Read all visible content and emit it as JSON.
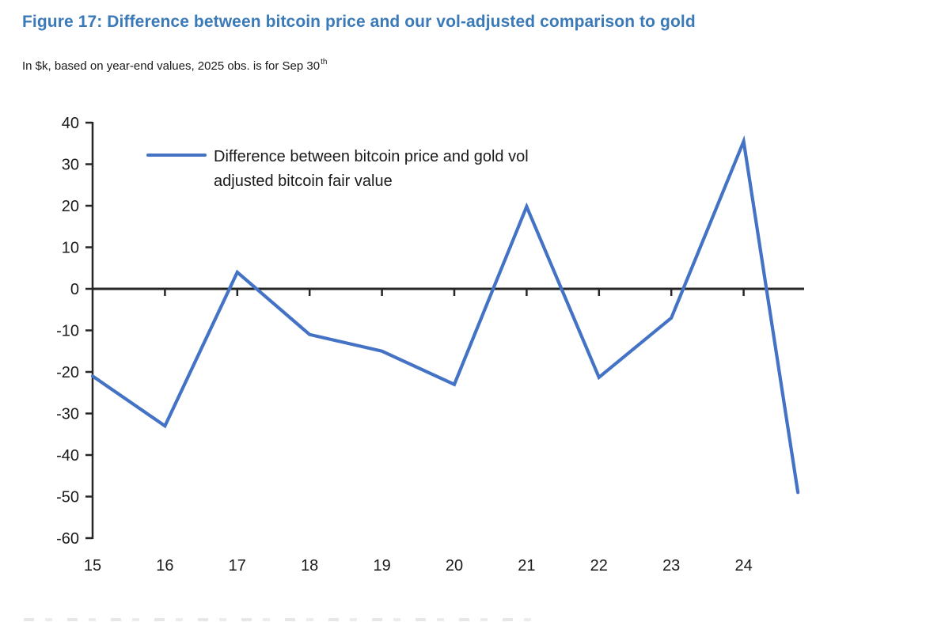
{
  "header": {
    "title": "Figure 17: Difference between bitcoin price and our vol-adjusted comparison to gold",
    "subtitle": "In $k, based on year-end values, 2025 obs. is for Sep 30",
    "subtitle_superscript": "th"
  },
  "legend": {
    "line1": "Difference between bitcoin price and gold vol",
    "line2": "adjusted bitcoin fair value"
  },
  "colors": {
    "series_line": "#4472C4",
    "title_text": "#3B7AB8",
    "axis": "#262626",
    "text": "#1a1a1a"
  },
  "chart_data": {
    "type": "line",
    "title": "Figure 17: Difference between bitcoin price and our vol-adjusted comparison to gold",
    "subtitle": "In $k, based on year-end values, 2025 obs. is for Sep 30th",
    "grid": false,
    "legend_position": "top-left-inside",
    "xlabel": "",
    "ylabel": "",
    "ylim": [
      -60,
      40
    ],
    "y_ticks": [
      40,
      30,
      20,
      10,
      0,
      -10,
      -20,
      -30,
      -40,
      -50,
      -60
    ],
    "x_tick_labels": [
      "15",
      "16",
      "17",
      "18",
      "19",
      "20",
      "21",
      "22",
      "23",
      "24"
    ],
    "x_note": "final observation is Sep 30, 2025, plotted 0.75 yr after the 2024 year-end point",
    "series": [
      {
        "name": "Difference between bitcoin price and gold vol adjusted bitcoin fair value",
        "x_labels": [
          "2015",
          "2016",
          "2017",
          "2018",
          "2019",
          "2020",
          "2021",
          "2022",
          "2023",
          "2024",
          "2025 (Sep 30)"
        ],
        "x_offsets_years": [
          0,
          1,
          2,
          3,
          4,
          5,
          6,
          7,
          8,
          9,
          9.75
        ],
        "values": [
          -21,
          -33,
          4,
          -11,
          -15,
          -23,
          19.8,
          -21.3,
          -7,
          35.5,
          -49
        ]
      }
    ]
  }
}
